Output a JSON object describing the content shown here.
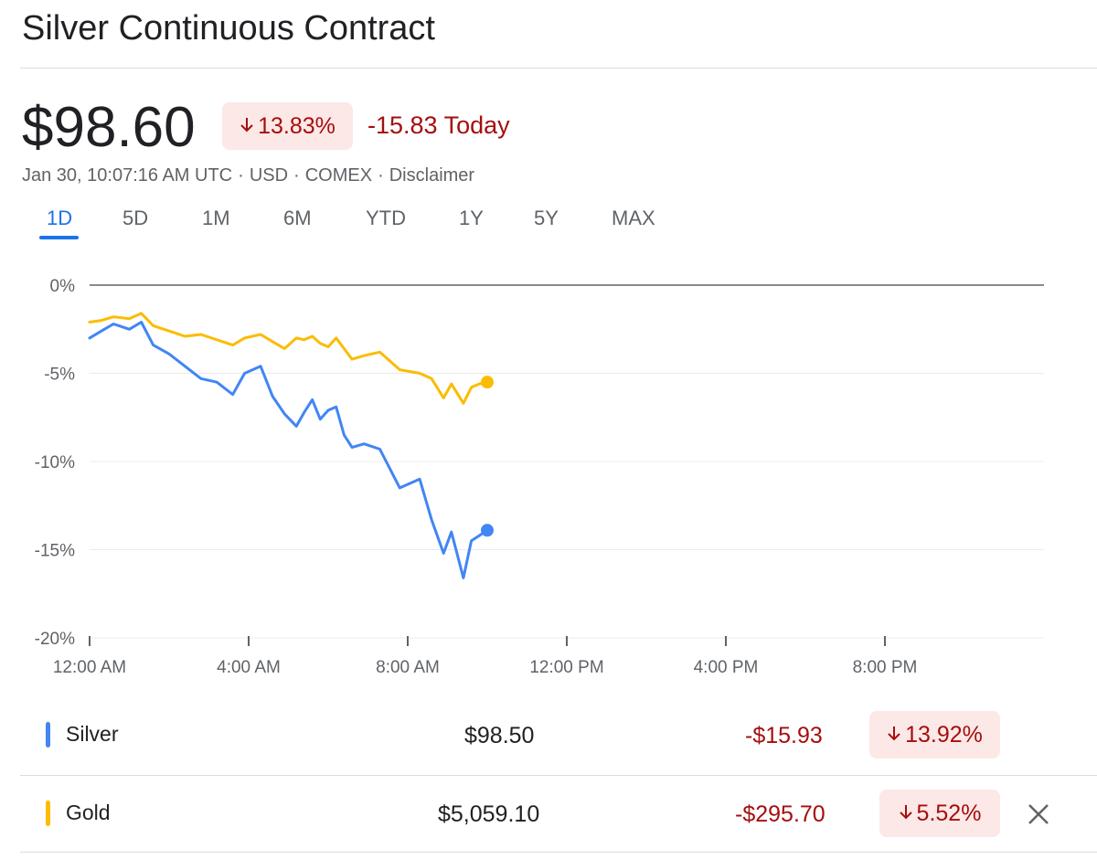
{
  "header": {
    "title": "Silver Continuous Contract"
  },
  "quote": {
    "price": "$98.60",
    "change_pct": "13.83%",
    "change_today": "-15.83 Today",
    "meta_date": "Jan 30, 10:07:16 AM UTC",
    "meta_currency": "USD",
    "meta_exchange": "COMEX",
    "meta_disclaimer": "Disclaimer",
    "meta_separator": "·"
  },
  "icons": {
    "down_arrow": "arrow-down-icon",
    "close": "close-icon"
  },
  "tabs": [
    {
      "label": "1D",
      "active": true
    },
    {
      "label": "5D"
    },
    {
      "label": "1M"
    },
    {
      "label": "6M"
    },
    {
      "label": "YTD"
    },
    {
      "label": "1Y"
    },
    {
      "label": "5Y"
    },
    {
      "label": "MAX"
    }
  ],
  "colors": {
    "silver": "#4285f4",
    "gold": "#fbbc04",
    "negative": "#a50e0e",
    "negative_bg": "#fce8e6",
    "accent": "#1a73e8"
  },
  "chart_data": {
    "type": "line",
    "x_unit": "hours since 12:00 AM",
    "xlim": [
      0,
      24
    ],
    "ylim": [
      -20,
      0
    ],
    "y_ticks": [
      0,
      -5,
      -10,
      -15,
      -20
    ],
    "y_tick_labels": [
      "0%",
      "-5%",
      "-10%",
      "-15%",
      "-20%"
    ],
    "x_ticks": [
      0,
      4,
      8,
      12,
      16,
      20
    ],
    "x_tick_labels": [
      "12:00 AM",
      "4:00 AM",
      "8:00 AM",
      "12:00 PM",
      "4:00 PM",
      "8:00 PM"
    ],
    "grid": true,
    "series": [
      {
        "name": "Silver",
        "color": "#4285f4",
        "x": [
          0,
          0.3,
          0.6,
          1.0,
          1.3,
          1.6,
          2.0,
          2.4,
          2.8,
          3.2,
          3.6,
          3.9,
          4.3,
          4.6,
          4.9,
          5.2,
          5.4,
          5.6,
          5.8,
          6.0,
          6.2,
          6.4,
          6.6,
          6.9,
          7.3,
          7.8,
          8.3,
          8.6,
          8.9,
          9.1,
          9.4,
          9.6,
          9.8,
          10.0
        ],
        "y": [
          -3.0,
          -2.6,
          -2.2,
          -2.5,
          -2.1,
          -3.4,
          -3.9,
          -4.6,
          -5.3,
          -5.5,
          -6.2,
          -5.0,
          -4.6,
          -6.3,
          -7.3,
          -8.0,
          -7.2,
          -6.5,
          -7.6,
          -7.1,
          -6.9,
          -8.5,
          -9.2,
          -9.0,
          -9.3,
          -11.5,
          -11.0,
          -13.3,
          -15.2,
          -14.0,
          -16.6,
          -14.5,
          -14.2,
          -13.9
        ]
      },
      {
        "name": "Gold",
        "color": "#fbbc04",
        "x": [
          0,
          0.3,
          0.6,
          1.0,
          1.3,
          1.6,
          2.0,
          2.4,
          2.8,
          3.2,
          3.6,
          3.9,
          4.3,
          4.6,
          4.9,
          5.2,
          5.4,
          5.6,
          5.8,
          6.0,
          6.2,
          6.4,
          6.6,
          6.9,
          7.3,
          7.8,
          8.3,
          8.6,
          8.9,
          9.1,
          9.4,
          9.6,
          9.8,
          10.0
        ],
        "y": [
          -2.1,
          -2.0,
          -1.8,
          -1.9,
          -1.6,
          -2.3,
          -2.6,
          -2.9,
          -2.8,
          -3.1,
          -3.4,
          -3.0,
          -2.8,
          -3.2,
          -3.6,
          -3.0,
          -3.1,
          -2.9,
          -3.3,
          -3.5,
          -3.0,
          -3.6,
          -4.2,
          -4.0,
          -3.8,
          -4.8,
          -5.0,
          -5.3,
          -6.4,
          -5.6,
          -6.7,
          -5.8,
          -5.6,
          -5.5
        ]
      }
    ]
  },
  "table": {
    "rows": [
      {
        "name": "Silver",
        "price": "$98.50",
        "change": "-$15.93",
        "pct": "13.92%",
        "color": "#4285f4"
      },
      {
        "name": "Gold",
        "price": "$5,059.10",
        "change": "-$295.70",
        "pct": "5.52%",
        "color": "#fbbc04"
      }
    ]
  }
}
